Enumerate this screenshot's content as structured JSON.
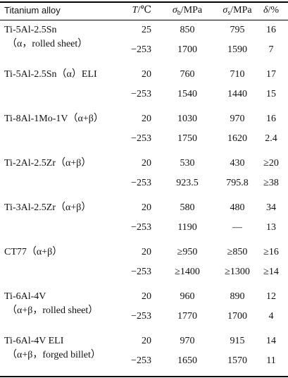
{
  "header": {
    "alloy": "Titanium alloy",
    "columns": [
      {
        "symbol": "T",
        "sub": "",
        "unit": "/℃"
      },
      {
        "symbol": "σ",
        "sub": "b",
        "unit": "/MPa"
      },
      {
        "symbol": "σ",
        "sub": "s",
        "unit": "/MPa"
      },
      {
        "symbol": "δ",
        "sub": "",
        "unit": "/%"
      }
    ]
  },
  "table": {
    "groups": [
      {
        "name": [
          "Ti-5Al-2.5Sn",
          "（α，rolled sheet）"
        ],
        "rows": [
          [
            "25",
            "850",
            "795",
            "16"
          ],
          [
            "−253",
            "1700",
            "1590",
            "7"
          ]
        ]
      },
      {
        "name": [
          "Ti-5Al-2.5Sn（α）ELI"
        ],
        "rows": [
          [
            "20",
            "760",
            "710",
            "17"
          ],
          [
            "−253",
            "1540",
            "1440",
            "15"
          ]
        ]
      },
      {
        "name": [
          "Ti-8Al-1Mo-1V（α+β）"
        ],
        "rows": [
          [
            "20",
            "1030",
            "970",
            "16"
          ],
          [
            "−253",
            "1750",
            "1620",
            "2.4"
          ]
        ]
      },
      {
        "name": [
          "Ti-2Al-2.5Zr（α+β）"
        ],
        "rows": [
          [
            "20",
            "530",
            "430",
            "≥20"
          ],
          [
            "−253",
            "923.5",
            "795.8",
            "≥38"
          ]
        ]
      },
      {
        "name": [
          "Ti-3Al-2.5Zr（α+β）"
        ],
        "rows": [
          [
            "20",
            "580",
            "480",
            "34"
          ],
          [
            "−253",
            "1190",
            "—",
            "13"
          ]
        ]
      },
      {
        "name": [
          "CT77（α+β）"
        ],
        "rows": [
          [
            "20",
            "≥950",
            "≥850",
            "≥16"
          ],
          [
            "−253",
            "≥1400",
            "≥1300",
            "≥14"
          ]
        ]
      },
      {
        "name": [
          "Ti-6Al-4V",
          "（α+β，rolled sheet）"
        ],
        "rows": [
          [
            "20",
            "960",
            "890",
            "12"
          ],
          [
            "−253",
            "1770",
            "1700",
            "4"
          ]
        ]
      },
      {
        "name": [
          "Ti-6Al-4V ELI",
          "（α+β，forged billet）"
        ],
        "rows": [
          [
            "20",
            "970",
            "915",
            "14"
          ],
          [
            "−253",
            "1650",
            "1570",
            "11"
          ]
        ]
      }
    ]
  }
}
